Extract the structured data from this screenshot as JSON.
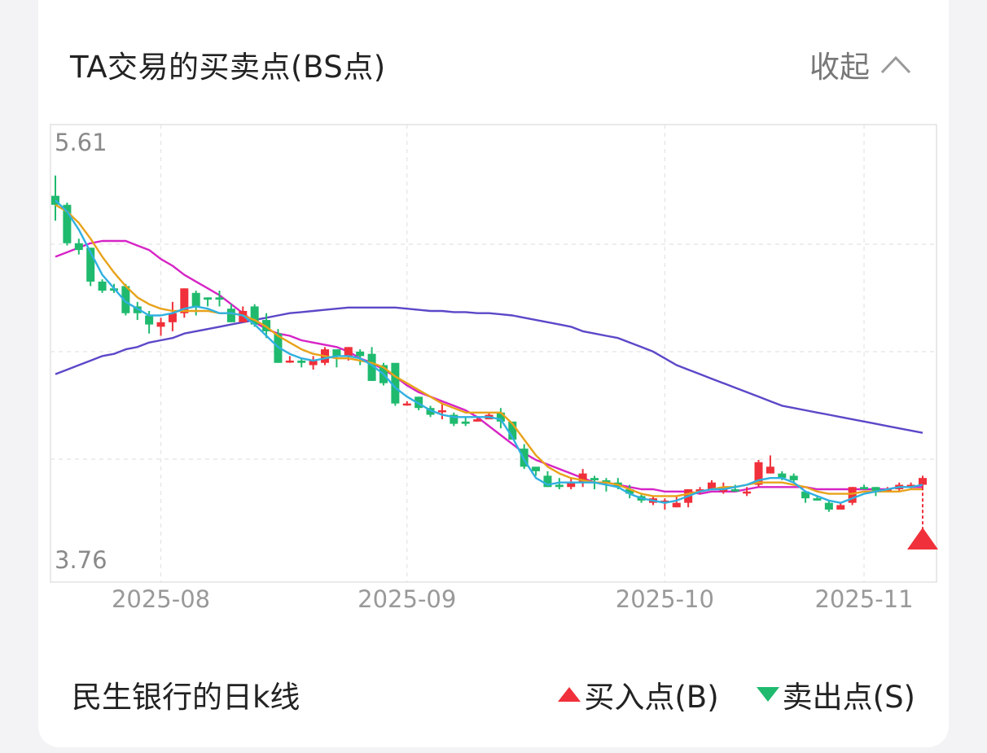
{
  "header": {
    "title": "TA交易的买卖点(BS点)",
    "collapse_label": "收起",
    "collapse_icon": "chevron-up-icon"
  },
  "footer": {
    "label": "民生银行的日k线",
    "legend": [
      {
        "label": "买入点(B)",
        "icon": "buy-triangle-icon",
        "color": "#f0303a"
      },
      {
        "label": "卖出点(S)",
        "icon": "sell-triangle-icon",
        "color": "#1fba6e"
      }
    ]
  },
  "chart_data": {
    "type": "candlestick",
    "y_axis": {
      "max_label": "5.61",
      "min_label": "3.76",
      "ylim": [
        3.76,
        5.61
      ]
    },
    "x_ticks": [
      {
        "label": "2025-08",
        "index": 9
      },
      {
        "label": "2025-09",
        "index": 30
      },
      {
        "label": "2025-10",
        "index": 52
      },
      {
        "label": "2025-11",
        "index": 69
      }
    ],
    "colors": {
      "up": "#f0303a",
      "down": "#1fba6e",
      "ma5": "#2fb0e0",
      "ma10": "#e8a21a",
      "ma20": "#d624c6",
      "ma60": "#5b48c8"
    },
    "candles": [
      [
        5.37,
        5.33,
        5.46,
        5.26
      ],
      [
        5.33,
        5.16,
        5.34,
        5.15
      ],
      [
        5.16,
        5.13,
        5.18,
        5.11
      ],
      [
        5.14,
        4.99,
        5.14,
        4.97
      ],
      [
        4.99,
        4.95,
        5.0,
        4.94
      ],
      [
        4.96,
        4.95,
        4.98,
        4.94
      ],
      [
        4.97,
        4.85,
        4.98,
        4.84
      ],
      [
        4.88,
        4.85,
        4.9,
        4.82
      ],
      [
        4.84,
        4.8,
        4.86,
        4.76
      ],
      [
        4.79,
        4.81,
        4.83,
        4.75
      ],
      [
        4.81,
        4.85,
        4.9,
        4.77
      ],
      [
        4.85,
        4.96,
        4.96,
        4.83
      ],
      [
        4.94,
        4.88,
        4.95,
        4.84
      ],
      [
        4.92,
        4.91,
        4.92,
        4.88
      ],
      [
        4.92,
        4.91,
        4.95,
        4.88
      ],
      [
        4.87,
        4.81,
        4.89,
        4.81
      ],
      [
        4.81,
        4.86,
        4.88,
        4.81
      ],
      [
        4.88,
        4.8,
        4.89,
        4.79
      ],
      [
        4.82,
        4.77,
        4.85,
        4.74
      ],
      [
        4.76,
        4.63,
        4.78,
        4.63
      ],
      [
        4.64,
        4.64,
        4.66,
        4.63
      ],
      [
        4.64,
        4.63,
        4.65,
        4.61
      ],
      [
        4.62,
        4.64,
        4.66,
        4.6
      ],
      [
        4.63,
        4.69,
        4.7,
        4.62
      ],
      [
        4.69,
        4.66,
        4.69,
        4.61
      ],
      [
        4.66,
        4.7,
        4.7,
        4.64
      ],
      [
        4.68,
        4.66,
        4.69,
        4.62
      ],
      [
        4.67,
        4.55,
        4.7,
        4.55
      ],
      [
        4.62,
        4.54,
        4.63,
        4.53
      ],
      [
        4.63,
        4.45,
        4.62,
        4.44
      ],
      [
        4.45,
        4.45,
        4.46,
        4.44
      ],
      [
        4.48,
        4.43,
        4.48,
        4.42
      ],
      [
        4.43,
        4.4,
        4.44,
        4.39
      ],
      [
        4.42,
        4.42,
        4.45,
        4.38
      ],
      [
        4.4,
        4.36,
        4.41,
        4.35
      ],
      [
        4.37,
        4.36,
        4.39,
        4.35
      ],
      [
        4.37,
        4.38,
        4.39,
        4.37
      ],
      [
        4.38,
        4.4,
        4.41,
        4.38
      ],
      [
        4.41,
        4.37,
        4.43,
        4.34
      ],
      [
        4.37,
        4.29,
        4.36,
        4.29
      ],
      [
        4.25,
        4.17,
        4.27,
        4.16
      ],
      [
        4.17,
        4.15,
        4.16,
        4.13
      ],
      [
        4.13,
        4.08,
        4.15,
        4.08
      ],
      [
        4.09,
        4.08,
        4.12,
        4.07
      ],
      [
        4.08,
        4.1,
        4.12,
        4.07
      ],
      [
        4.1,
        4.14,
        4.16,
        4.08
      ],
      [
        4.12,
        4.11,
        4.13,
        4.07
      ],
      [
        4.11,
        4.1,
        4.12,
        4.06
      ],
      [
        4.1,
        4.08,
        4.12,
        4.07
      ],
      [
        4.07,
        4.05,
        4.09,
        4.03
      ],
      [
        4.04,
        4.02,
        4.05,
        4.01
      ],
      [
        4.01,
        4.03,
        4.04,
        4.0
      ],
      [
        4.01,
        4.02,
        4.03,
        3.98
      ],
      [
        3.99,
        4.01,
        4.04,
        3.99
      ],
      [
        4.01,
        4.07,
        4.07,
        3.99
      ],
      [
        4.07,
        4.07,
        4.08,
        4.05
      ],
      [
        4.07,
        4.1,
        4.11,
        4.07
      ],
      [
        4.06,
        4.08,
        4.1,
        4.05
      ],
      [
        4.07,
        4.06,
        4.09,
        4.06
      ],
      [
        4.06,
        4.06,
        4.08,
        4.04
      ],
      [
        4.09,
        4.19,
        4.2,
        4.08
      ],
      [
        4.14,
        4.17,
        4.22,
        4.14
      ],
      [
        4.14,
        4.12,
        4.15,
        4.11
      ],
      [
        4.13,
        4.11,
        4.14,
        4.1
      ],
      [
        4.06,
        4.03,
        4.06,
        4.01
      ],
      [
        4.03,
        4.02,
        4.04,
        4.02
      ],
      [
        4.01,
        3.98,
        4.02,
        3.97
      ],
      [
        3.98,
        4.0,
        4.01,
        3.98
      ],
      [
        4.01,
        4.08,
        4.08,
        4.0
      ],
      [
        4.08,
        4.07,
        4.09,
        4.07
      ],
      [
        4.08,
        4.06,
        4.08,
        4.04
      ],
      [
        4.06,
        4.07,
        4.08,
        4.06
      ],
      [
        4.07,
        4.09,
        4.1,
        4.06
      ],
      [
        4.08,
        4.09,
        4.1,
        4.07
      ],
      [
        4.09,
        4.12,
        4.13,
        4.08
      ]
    ],
    "ma5": [
      5.35,
      5.3,
      5.22,
      5.12,
      5.02,
      4.96,
      4.9,
      4.87,
      4.84,
      4.84,
      4.85,
      4.87,
      4.88,
      4.87,
      4.85,
      4.85,
      4.84,
      4.8,
      4.75,
      4.7,
      4.67,
      4.65,
      4.64,
      4.65,
      4.66,
      4.66,
      4.65,
      4.62,
      4.58,
      4.52,
      4.48,
      4.45,
      4.42,
      4.4,
      4.39,
      4.39,
      4.39,
      4.39,
      4.38,
      4.3,
      4.2,
      4.12,
      4.09,
      4.1,
      4.1,
      4.1,
      4.1,
      4.09,
      4.08,
      4.05,
      4.03,
      4.02,
      4.01,
      4.02,
      4.04,
      4.06,
      4.07,
      4.07,
      4.08,
      4.09,
      4.11,
      4.12,
      4.12,
      4.1,
      4.06,
      4.04,
      4.02,
      4.01,
      4.03,
      4.05,
      4.06,
      4.07,
      4.08,
      4.08,
      4.09
    ],
    "ma10": [
      5.33,
      5.3,
      5.25,
      5.18,
      5.1,
      5.03,
      4.97,
      4.92,
      4.89,
      4.87,
      4.86,
      4.86,
      4.86,
      4.86,
      4.85,
      4.85,
      4.84,
      4.82,
      4.79,
      4.75,
      4.72,
      4.69,
      4.67,
      4.66,
      4.65,
      4.65,
      4.64,
      4.63,
      4.61,
      4.57,
      4.54,
      4.51,
      4.48,
      4.45,
      4.43,
      4.41,
      4.41,
      4.41,
      4.41,
      4.36,
      4.29,
      4.22,
      4.17,
      4.14,
      4.12,
      4.11,
      4.1,
      4.1,
      4.09,
      4.07,
      4.05,
      4.04,
      4.04,
      4.04,
      4.05,
      4.06,
      4.07,
      4.08,
      4.08,
      4.09,
      4.1,
      4.1,
      4.1,
      4.09,
      4.08,
      4.06,
      4.05,
      4.05,
      4.05,
      4.06,
      4.06,
      4.06,
      4.06,
      4.07,
      4.07
    ],
    "ma20": [
      5.1,
      5.12,
      5.14,
      5.16,
      5.17,
      5.17,
      5.17,
      5.15,
      5.13,
      5.09,
      5.06,
      5.02,
      4.99,
      4.96,
      4.93,
      4.89,
      4.85,
      4.81,
      4.78,
      4.76,
      4.75,
      4.73,
      4.72,
      4.71,
      4.7,
      4.68,
      4.65,
      4.63,
      4.6,
      4.57,
      4.53,
      4.5,
      4.48,
      4.46,
      4.44,
      4.42,
      4.39,
      4.35,
      4.31,
      4.27,
      4.23,
      4.2,
      4.18,
      4.16,
      4.14,
      4.12,
      4.1,
      4.1,
      4.09,
      4.08,
      4.07,
      4.07,
      4.06,
      4.06,
      4.06,
      4.05,
      4.06,
      4.06,
      4.06,
      4.07,
      4.08,
      4.08,
      4.08,
      4.08,
      4.08,
      4.07,
      4.07,
      4.07,
      4.07,
      4.07,
      4.07,
      4.07,
      4.08,
      4.08,
      4.08
    ],
    "ma60": [
      4.58,
      4.6,
      4.62,
      4.64,
      4.66,
      4.67,
      4.69,
      4.7,
      4.72,
      4.73,
      4.74,
      4.76,
      4.77,
      4.78,
      4.79,
      4.8,
      4.81,
      4.82,
      4.83,
      4.84,
      4.85,
      4.855,
      4.86,
      4.865,
      4.87,
      4.875,
      4.875,
      4.875,
      4.875,
      4.875,
      4.87,
      4.865,
      4.86,
      4.86,
      4.855,
      4.855,
      4.85,
      4.85,
      4.845,
      4.84,
      4.83,
      4.82,
      4.81,
      4.8,
      4.79,
      4.77,
      4.76,
      4.75,
      4.74,
      4.72,
      4.7,
      4.68,
      4.65,
      4.62,
      4.6,
      4.58,
      4.56,
      4.54,
      4.52,
      4.5,
      4.48,
      4.46,
      4.44,
      4.43,
      4.42,
      4.41,
      4.4,
      4.39,
      4.38,
      4.37,
      4.36,
      4.35,
      4.34,
      4.33,
      4.32
    ],
    "signals": [
      {
        "type": "buy",
        "index": 74
      }
    ]
  }
}
